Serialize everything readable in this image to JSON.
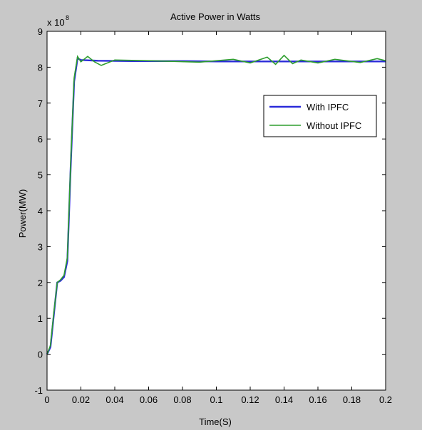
{
  "chart_data": {
    "type": "line",
    "title": "Active Power in Watts",
    "xlabel": "Time(S)",
    "ylabel": "Power(MW)",
    "y_exponent_label": "x 10",
    "y_exponent": "8",
    "xlim": [
      0,
      0.2
    ],
    "ylim": [
      -1,
      9
    ],
    "grid": false,
    "legend_position": "right",
    "x_ticks": [
      "0",
      "0.02",
      "0.04",
      "0.06",
      "0.08",
      "0.1",
      "0.12",
      "0.14",
      "0.16",
      "0.18",
      "0.2"
    ],
    "y_ticks": [
      "-1",
      "0",
      "1",
      "2",
      "3",
      "4",
      "5",
      "6",
      "7",
      "8",
      "9"
    ],
    "series": [
      {
        "name": "With IPFC",
        "color": "#2b2bd9",
        "x": [
          0,
          0.002,
          0.004,
          0.006,
          0.008,
          0.01,
          0.012,
          0.014,
          0.016,
          0.018,
          0.02,
          0.03,
          0.05,
          0.08,
          0.1,
          0.14,
          0.18,
          0.2
        ],
        "y": [
          0,
          0.2,
          1.1,
          2.0,
          2.05,
          2.15,
          2.6,
          5.3,
          7.6,
          8.25,
          8.2,
          8.18,
          8.17,
          8.17,
          8.16,
          8.16,
          8.16,
          8.16
        ]
      },
      {
        "name": "Without IPFC",
        "color": "#2e9e2e",
        "x": [
          0,
          0.002,
          0.004,
          0.006,
          0.008,
          0.01,
          0.012,
          0.014,
          0.016,
          0.018,
          0.02,
          0.024,
          0.028,
          0.032,
          0.04,
          0.06,
          0.09,
          0.11,
          0.12,
          0.13,
          0.135,
          0.14,
          0.145,
          0.15,
          0.16,
          0.17,
          0.185,
          0.195,
          0.2
        ],
        "y": [
          0,
          0.25,
          1.15,
          2.0,
          2.08,
          2.2,
          2.7,
          5.4,
          7.7,
          8.3,
          8.15,
          8.3,
          8.15,
          8.05,
          8.2,
          8.18,
          8.14,
          8.22,
          8.12,
          8.28,
          8.08,
          8.33,
          8.1,
          8.2,
          8.12,
          8.22,
          8.13,
          8.24,
          8.18
        ]
      }
    ]
  }
}
